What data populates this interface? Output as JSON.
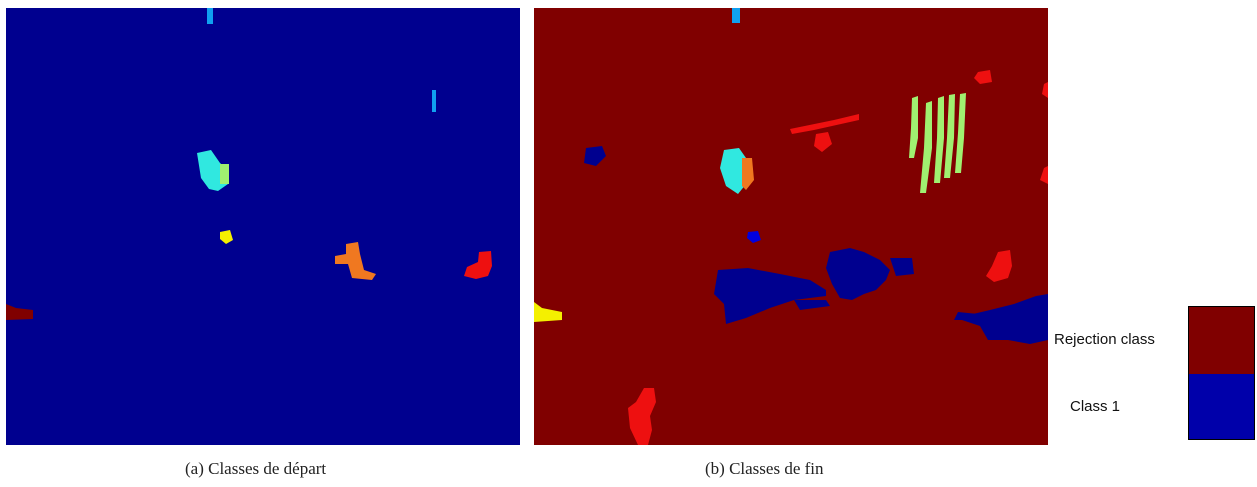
{
  "captions": {
    "a": "(a)  Classes de départ",
    "b": "(b)  Classes de fin"
  },
  "legend": {
    "items": [
      {
        "label": "Rejection class",
        "color": "#800000"
      },
      {
        "label": "Class 1",
        "color": "#0000aa"
      }
    ]
  },
  "colors": {
    "background_a": "#00008f",
    "background_b": "#800000",
    "class_cyan": "#30e8e0",
    "class_orange": "#f07820",
    "class_red": "#ee1010",
    "class_yellow": "#f4f000",
    "class_green": "#a0f070",
    "class_lightblue": "#10a0f0",
    "class_darkblue": "#00008f",
    "class_blue": "#0000e0"
  }
}
